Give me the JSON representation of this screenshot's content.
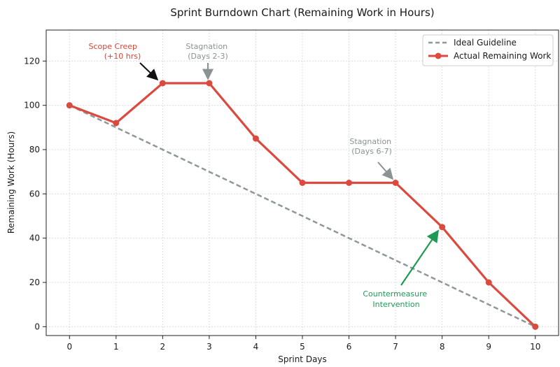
{
  "chart_data": {
    "type": "line",
    "title": "Sprint Burndown Chart (Remaining Work in Hours)",
    "xlabel": "Sprint Days",
    "ylabel": "Remaining Work (Hours)",
    "xlim": [
      -0.5,
      10.5
    ],
    "ylim": [
      -4,
      134
    ],
    "x_ticks": [
      0,
      1,
      2,
      3,
      4,
      5,
      6,
      7,
      8,
      9,
      10
    ],
    "y_ticks": [
      0,
      20,
      40,
      60,
      80,
      100,
      120
    ],
    "grid": true,
    "legend_position": "top-right",
    "series": [
      {
        "name": "Ideal Guideline",
        "style": "dashed",
        "color": "#8e9897",
        "x": [
          0,
          10
        ],
        "y": [
          100,
          0
        ]
      },
      {
        "name": "Actual Remaining Work",
        "style": "solid-with-markers",
        "color": "#db4a3e",
        "x": [
          0,
          1,
          2,
          3,
          4,
          5,
          6,
          7,
          8,
          9,
          10
        ],
        "y": [
          100,
          92,
          110,
          110,
          85,
          65,
          65,
          65,
          45,
          20,
          0
        ]
      }
    ],
    "annotations": [
      {
        "lines": [
          "Scope Creep",
          "(+10 hrs)"
        ],
        "color": "#d0473a",
        "arrow_color": "#111111",
        "target": [
          2,
          110
        ]
      },
      {
        "lines": [
          "Stagnation",
          "(Days 2-3)"
        ],
        "color": "#8a9392",
        "arrow_color": "#8a9392",
        "target": [
          3,
          110
        ]
      },
      {
        "lines": [
          "Stagnation",
          "(Days 6-7)"
        ],
        "color": "#8a9392",
        "arrow_color": "#8a9392",
        "target": [
          7,
          65
        ]
      },
      {
        "lines": [
          "Countermeasure",
          "Intervention"
        ],
        "color": "#1e9a55",
        "arrow_color": "#1e9a55",
        "target": [
          8,
          45
        ]
      }
    ]
  }
}
